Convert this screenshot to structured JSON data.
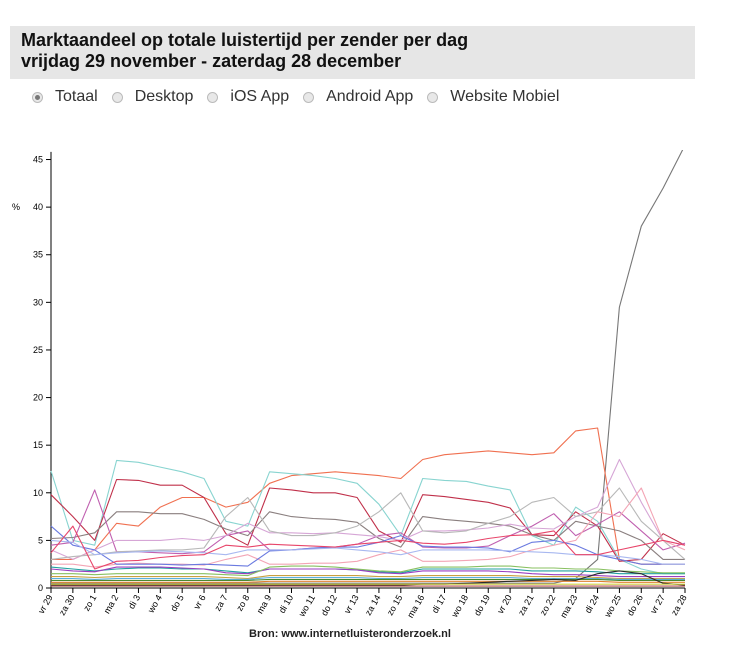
{
  "header": {
    "title_line1": "Marktaandeel op totale luistertijd per zender per dag",
    "title_line2": "vrijdag 29 november - zaterdag 28 december"
  },
  "radios": [
    {
      "label": "Totaal",
      "checked": true
    },
    {
      "label": "Desktop",
      "checked": false
    },
    {
      "label": "iOS App",
      "checked": false
    },
    {
      "label": "Android App",
      "checked": false
    },
    {
      "label": "Website Mobiel",
      "checked": false
    }
  ],
  "source": "Bron: www.internetluisteronderzoek.nl",
  "chart_data": {
    "type": "line",
    "ylabel": "%",
    "ylim": [
      0,
      46
    ],
    "yticks": [
      0,
      5,
      10,
      15,
      20,
      25,
      30,
      35,
      40,
      45
    ],
    "grid": false,
    "categories": [
      "vr 29",
      "za 30",
      "zo 1",
      "ma 2",
      "di 3",
      "wo 4",
      "do 5",
      "vr 6",
      "za 7",
      "zo 8",
      "ma 9",
      "di 10",
      "wo 11",
      "do 12",
      "vr 13",
      "za 14",
      "zo 15",
      "ma 16",
      "di 17",
      "wo 18",
      "do 19",
      "vr 20",
      "za 21",
      "zo 22",
      "ma 23",
      "di 24",
      "wo 25",
      "do 26",
      "vr 27",
      "za 28"
    ],
    "series": [
      {
        "color": "#777777",
        "values": [
          0.5,
          0.5,
          0.5,
          0.5,
          0.5,
          0.5,
          0.5,
          0.5,
          0.5,
          0.5,
          0.5,
          0.5,
          0.5,
          0.5,
          0.5,
          0.5,
          0.5,
          0.5,
          0.5,
          0.5,
          0.5,
          0.5,
          0.5,
          0.5,
          1,
          3,
          29.5,
          38,
          42,
          46.5
        ]
      },
      {
        "color": "#f07050",
        "values": [
          3,
          3,
          4,
          6.8,
          6.5,
          8.5,
          9.5,
          9.5,
          8.5,
          9,
          11,
          11.8,
          12,
          12.2,
          12,
          11.8,
          11.5,
          13.5,
          14,
          14.2,
          14.4,
          14.2,
          14,
          14.2,
          16.5,
          16.8,
          3,
          2.5,
          2.5,
          2.5
        ]
      },
      {
        "color": "#88d4d0",
        "values": [
          12.3,
          5,
          4.5,
          13.4,
          13.2,
          12.7,
          12.2,
          11.5,
          7,
          6.5,
          12.2,
          12,
          11.8,
          11.5,
          11,
          8.8,
          5.5,
          11.5,
          11.3,
          11.2,
          10.7,
          10.3,
          5.5,
          4.5,
          8.5,
          7,
          3,
          2,
          1.5,
          1.5
        ]
      },
      {
        "color": "#c0304a",
        "values": [
          9.8,
          7.5,
          5,
          11.4,
          11.3,
          10.8,
          10.8,
          9.5,
          5.7,
          4.5,
          10.5,
          10.3,
          10,
          10,
          9.5,
          6,
          4.8,
          9.8,
          9.6,
          9.3,
          9,
          8.4,
          5.6,
          5.5,
          8,
          6.5,
          2.8,
          3,
          5.7,
          4.5
        ]
      },
      {
        "color": "#8a7f7f",
        "values": [
          5.2,
          5.3,
          5.8,
          8,
          8,
          7.8,
          7.8,
          7.2,
          6.2,
          5.5,
          8,
          7.5,
          7.3,
          7.2,
          6.9,
          5.2,
          4.3,
          7.5,
          7.2,
          7,
          6.8,
          6.5,
          5.6,
          5,
          7,
          6.5,
          6,
          5,
          3,
          3
        ]
      },
      {
        "color": "#c060b0",
        "values": [
          4.5,
          4.8,
          10.3,
          3.8,
          3.8,
          3.7,
          3.6,
          3.8,
          5.5,
          6,
          4,
          4,
          4.2,
          4.3,
          4.6,
          5.5,
          5.8,
          4.3,
          4.2,
          4.2,
          4.4,
          5.5,
          6.5,
          7.8,
          5.5,
          6.7,
          8,
          6,
          4,
          4.7
        ]
      },
      {
        "color": "#d6a6d6",
        "values": [
          4,
          3,
          4,
          5,
          5,
          5,
          5.2,
          5,
          5.5,
          6.8,
          5.8,
          5.8,
          5.7,
          5.8,
          5.6,
          5.4,
          5,
          6,
          6,
          6.1,
          6.3,
          6.7,
          6.3,
          6.2,
          7.5,
          8.5,
          13.5,
          9,
          5,
          4.5
        ]
      },
      {
        "color": "#b8b8b8",
        "values": [
          3,
          3.3,
          3.5,
          3.8,
          3.9,
          4,
          4,
          4.2,
          7.5,
          9.5,
          6,
          5.5,
          5.5,
          5.8,
          6.5,
          8,
          10,
          6,
          5.8,
          6,
          6.8,
          7.5,
          9,
          9.5,
          7.5,
          8,
          10.5,
          7,
          5,
          3
        ]
      },
      {
        "color": "#f3a5b5",
        "values": [
          2.5,
          2.5,
          2.2,
          2.5,
          2.6,
          2.5,
          2.5,
          2.4,
          3,
          3.5,
          2.5,
          2.5,
          2.6,
          2.6,
          2.8,
          3.5,
          4,
          2.8,
          2.8,
          2.9,
          3,
          3.3,
          4,
          4.5,
          5,
          8,
          7.5,
          10.5,
          5,
          4
        ]
      },
      {
        "color": "#6a7ae0",
        "values": [
          6.5,
          4.5,
          4,
          2.5,
          2.5,
          2.5,
          2.4,
          2.5,
          2.4,
          2.3,
          3.9,
          4,
          4.2,
          4.3,
          4.3,
          4.8,
          5.5,
          4.4,
          4.3,
          4.3,
          4.2,
          3.8,
          4.8,
          5,
          4.5,
          3.5,
          3,
          2.5,
          2.5,
          2.5
        ]
      },
      {
        "color": "#a8b8f0",
        "values": [
          5,
          4.8,
          3.5,
          3.7,
          3.8,
          3.9,
          3.8,
          3.7,
          3.5,
          4,
          4,
          4,
          4.1,
          4.2,
          4,
          3.8,
          3.5,
          4,
          4,
          4,
          4,
          3.9,
          3.8,
          3.7,
          3.5,
          3.5,
          3.3,
          3,
          2.5,
          2.5
        ]
      },
      {
        "color": "#e8456a",
        "values": [
          3.7,
          6.5,
          2,
          2.8,
          2.9,
          3.2,
          3.4,
          3.5,
          4.5,
          4.3,
          4.6,
          4.5,
          4.4,
          4.3,
          4.6,
          4.8,
          5,
          4.7,
          4.6,
          4.8,
          5.2,
          5.5,
          5.6,
          6,
          3.5,
          3.5,
          4,
          4.5,
          5,
          4.5
        ]
      },
      {
        "color": "#22a0a0",
        "values": [
          2.2,
          2,
          1.8,
          2,
          2.1,
          2.1,
          2,
          2,
          1.8,
          1.6,
          2,
          2,
          2,
          2,
          1.9,
          1.7,
          1.6,
          2,
          2,
          2,
          2,
          2,
          1.8,
          1.8,
          1.8,
          1.7,
          1.5,
          1.5,
          1.5,
          1.5
        ]
      },
      {
        "color": "#9a3fc0",
        "values": [
          2,
          1.8,
          1.7,
          2.2,
          2.2,
          2.2,
          2.1,
          2,
          1.6,
          1.5,
          2,
          2,
          2,
          2,
          1.9,
          1.6,
          1.5,
          1.8,
          1.8,
          1.8,
          1.8,
          1.7,
          1.5,
          1.4,
          1.4,
          1.3,
          1.2,
          1.2,
          1.2,
          1.2
        ]
      },
      {
        "color": "#88c060",
        "values": [
          1.5,
          1.5,
          1.4,
          1.5,
          1.5,
          1.5,
          1.5,
          1.5,
          1.4,
          1.3,
          2.2,
          2.3,
          2.3,
          2.2,
          2,
          1.8,
          1.7,
          2.2,
          2.2,
          2.2,
          2.3,
          2.3,
          2.1,
          2.1,
          2,
          2,
          1.8,
          1.7,
          1.6,
          1.6
        ]
      },
      {
        "color": "#c8a040",
        "values": [
          1.2,
          1.2,
          1.1,
          1.2,
          1.2,
          1.2,
          1.2,
          1.2,
          1.1,
          1,
          1.3,
          1.3,
          1.3,
          1.3,
          1.3,
          1.2,
          1.2,
          1.3,
          1.3,
          1.3,
          1.3,
          1.3,
          1.2,
          1.2,
          1.2,
          1.1,
          1,
          1,
          1,
          1
        ]
      },
      {
        "color": "#5ab0e0",
        "values": [
          1,
          1,
          0.9,
          1,
          1,
          1,
          1,
          1,
          0.9,
          0.9,
          1.1,
          1.1,
          1.1,
          1.1,
          1.1,
          1,
          1,
          1.1,
          1.1,
          1.1,
          1.1,
          1.1,
          1,
          1,
          1,
          1,
          0.9,
          0.9,
          0.9,
          0.9
        ]
      },
      {
        "color": "#4a8a30",
        "values": [
          0.8,
          0.8,
          0.8,
          0.8,
          0.8,
          0.8,
          0.8,
          0.8,
          0.8,
          0.8,
          0.9,
          0.9,
          0.9,
          0.9,
          0.9,
          0.9,
          0.9,
          0.9,
          0.9,
          0.9,
          0.9,
          0.9,
          0.9,
          0.9,
          0.9,
          0.9,
          0.8,
          0.8,
          0.8,
          0.8
        ]
      },
      {
        "color": "#e08030",
        "values": [
          0.6,
          0.6,
          0.6,
          0.6,
          0.6,
          0.6,
          0.6,
          0.6,
          0.6,
          0.6,
          0.7,
          0.7,
          0.7,
          0.7,
          0.7,
          0.7,
          0.7,
          0.7,
          0.7,
          0.7,
          0.7,
          0.7,
          0.7,
          0.7,
          0.7,
          0.7,
          0.6,
          0.6,
          0.6,
          0.6
        ]
      },
      {
        "color": "#2c2c2c",
        "values": [
          0.3,
          0.3,
          0.3,
          0.3,
          0.3,
          0.3,
          0.3,
          0.3,
          0.3,
          0.3,
          0.3,
          0.3,
          0.3,
          0.3,
          0.3,
          0.3,
          0.3,
          0.4,
          0.4,
          0.5,
          0.6,
          0.7,
          0.8,
          0.9,
          0.8,
          1.5,
          1.8,
          1.5,
          0.5,
          0.3
        ]
      },
      {
        "color": "#d0d040",
        "values": [
          0.4,
          0.4,
          0.4,
          0.4,
          0.4,
          0.4,
          0.4,
          0.4,
          0.4,
          0.4,
          0.4,
          0.4,
          0.4,
          0.4,
          0.4,
          0.4,
          0.4,
          0.4,
          0.4,
          0.4,
          0.4,
          0.4,
          0.4,
          0.4,
          0.4,
          0.4,
          0.4,
          0.4,
          0.4,
          0.4
        ]
      },
      {
        "color": "#b05050",
        "values": [
          0.2,
          0.2,
          0.2,
          0.2,
          0.2,
          0.2,
          0.2,
          0.2,
          0.2,
          0.2,
          0.2,
          0.2,
          0.2,
          0.2,
          0.2,
          0.2,
          0.2,
          0.2,
          0.2,
          0.2,
          0.2,
          0.2,
          0.2,
          0.2,
          0.2,
          0.2,
          0.2,
          0.2,
          0.2,
          0.2
        ]
      }
    ]
  }
}
